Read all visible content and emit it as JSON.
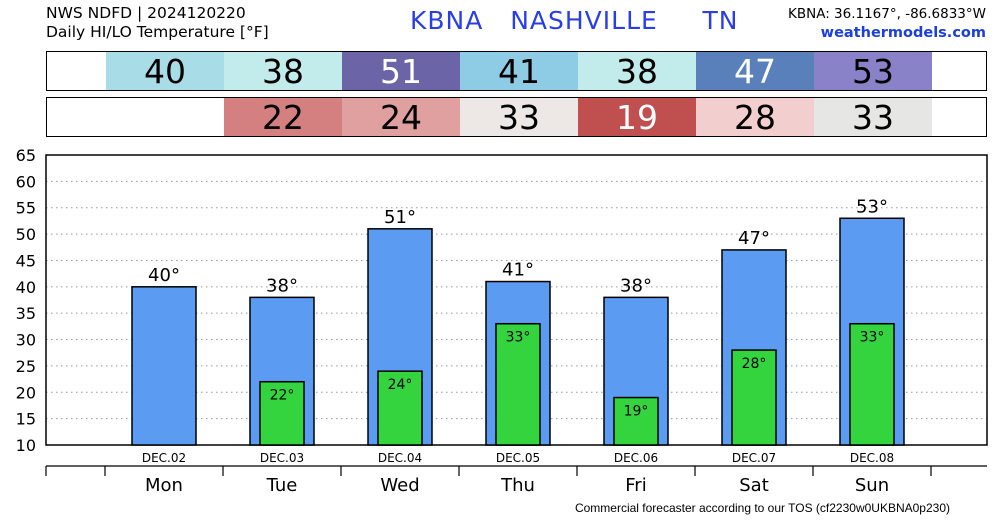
{
  "header": {
    "line1": "NWS NDFD | 2024120220",
    "line2": "Daily HI/LO Temperature [°F]",
    "station": "KBNA   NASHVILLE     TN",
    "coords": "KBNA: 36.1167°, -86.6833°W",
    "site": "weathermodels.com"
  },
  "hi_strip": [
    {
      "value": "40",
      "color": "#a8dde8",
      "text_color": "#000000"
    },
    {
      "value": "38",
      "color": "#c2ecec",
      "text_color": "#000000"
    },
    {
      "value": "51",
      "color": "#6b65a8",
      "text_color": "#ffffff"
    },
    {
      "value": "41",
      "color": "#8ecbe4",
      "text_color": "#000000"
    },
    {
      "value": "38",
      "color": "#c2ecec",
      "text_color": "#000000"
    },
    {
      "value": "47",
      "color": "#5a80bc",
      "text_color": "#ffffff"
    },
    {
      "value": "53",
      "color": "#8a82c8",
      "text_color": "#000000"
    }
  ],
  "lo_strip": [
    {
      "value": "22",
      "color": "#d48080",
      "text_color": "#000000"
    },
    {
      "value": "24",
      "color": "#e0a0a0",
      "text_color": "#000000"
    },
    {
      "value": "33",
      "color": "#ede8e6",
      "text_color": "#000000"
    },
    {
      "value": "19",
      "color": "#c05050",
      "text_color": "#ffffff"
    },
    {
      "value": "28",
      "color": "#f3cece",
      "text_color": "#000000"
    },
    {
      "value": "33",
      "color": "#e6e6e4",
      "text_color": "#000000"
    }
  ],
  "chart_data": {
    "type": "bar",
    "categories": [
      "Mon",
      "Tue",
      "Wed",
      "Thu",
      "Fri",
      "Sat",
      "Sun"
    ],
    "dates": [
      "DEC.02",
      "DEC.03",
      "DEC.04",
      "DEC.05",
      "DEC.06",
      "DEC.07",
      "DEC.08"
    ],
    "series": [
      {
        "name": "HI",
        "values": [
          40,
          38,
          51,
          41,
          38,
          47,
          53
        ],
        "color": "#5b9cf2"
      },
      {
        "name": "LO",
        "values": [
          null,
          22,
          24,
          33,
          19,
          28,
          33
        ],
        "color": "#33d43d"
      }
    ],
    "hi_labels": [
      "40°",
      "38°",
      "51°",
      "41°",
      "38°",
      "47°",
      "53°"
    ],
    "lo_labels": [
      "",
      "22°",
      "24°",
      "33°",
      "19°",
      "28°",
      "33°"
    ],
    "ylim": [
      10,
      65
    ],
    "yticks": [
      "10",
      "15",
      "20",
      "25",
      "30",
      "35",
      "40",
      "45",
      "50",
      "55",
      "60",
      "65"
    ],
    "grid": true
  },
  "footer": "Commercial forecaster according to our TOS (cf2230w0UKBNA0p230)"
}
